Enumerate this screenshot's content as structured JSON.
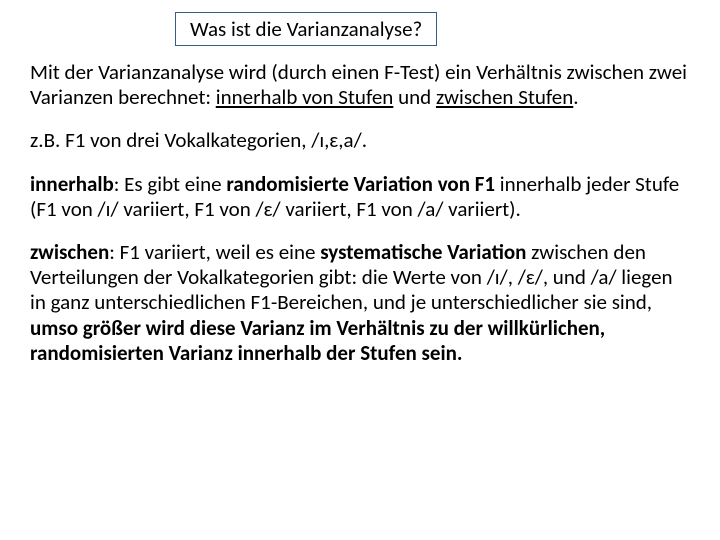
{
  "title": "Was ist die Varianzanalyse?",
  "p1": {
    "t1": "Mit der Varianzanalyse wird (durch einen F-Test) ein Verhältnis zwischen zwei Varianzen berechnet: ",
    "t2": "innerhalb von Stufen",
    "t3": " und ",
    "t4": "zwischen Stufen",
    "t5": "."
  },
  "p2": "z.B.  F1 von drei Vokalkategorien, /ɪ,ɛ,a/.",
  "p3": {
    "t1": "innerhalb",
    "t2": ": Es gibt eine ",
    "t3": "randomisierte",
    "t4": " ",
    "t5": "Variation von F1",
    "t6": " innerhalb jeder Stufe (F1 von /ɪ/ variiert, F1 von /ɛ/ variiert, F1 von /a/ variiert)."
  },
  "p4": {
    "t1": "zwischen",
    "t2": ": F1 variiert, weil es eine ",
    "t3": "systematische  Variation",
    "t4": " zwischen den Verteilungen der Vokalkategorien gibt: die Werte von /ɪ/, /ɛ/, und /a/ liegen in ganz unterschiedlichen F1-Bereichen, und je unterschiedlicher sie sind, ",
    "t5": "umso größer wird diese Varianz im Verhältnis zu der willkürlichen, randomisierten Varianz innerhalb der Stufen sein."
  }
}
